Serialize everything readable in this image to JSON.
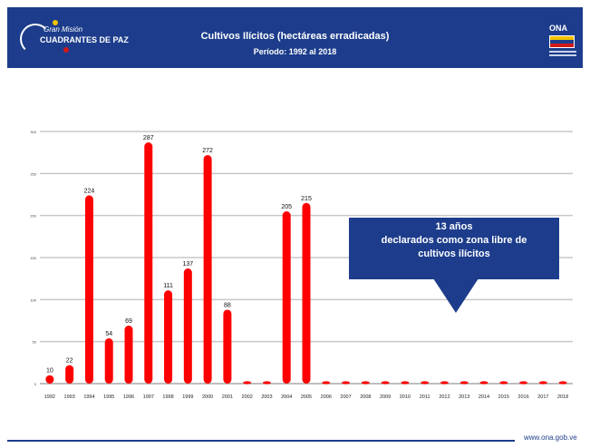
{
  "header": {
    "logo_line1": "Gran Misión",
    "logo_line2": "CUADRANTES DE PAZ",
    "title": "Cultivos Ilícitos (hectáreas erradicadas)",
    "subtitle": "Período: 1992 al 2018",
    "right_logo_text": "ONA"
  },
  "colors": {
    "header_bg": "#1d3d8c",
    "bar": "#ff0000",
    "callout_bg": "#1d3d8c",
    "grid": "#c8c8c8"
  },
  "callout": {
    "line1": "13 años",
    "line2": "declarados como zona libre de",
    "line3": "cultivos ilícitos"
  },
  "footer": {
    "url": "www.ona.gob.ve"
  },
  "chart_data": {
    "type": "bar",
    "title": "Cultivos Ilícitos (hectáreas erradicadas)",
    "subtitle": "Período: 1992 al 2018",
    "categories": [
      "1992",
      "1993",
      "1994",
      "1995",
      "1996",
      "1997",
      "1998",
      "1999",
      "2000",
      "2001",
      "2002",
      "2003",
      "2004",
      "2005",
      "2006",
      "2007",
      "2008",
      "2009",
      "2010",
      "2011",
      "2012",
      "2013",
      "2014",
      "2015",
      "2016",
      "2017",
      "2018"
    ],
    "values": [
      10,
      22,
      224,
      54,
      69,
      287,
      111,
      137,
      272,
      88,
      0,
      0,
      205,
      215,
      0,
      0,
      0,
      0,
      0,
      0,
      0,
      0,
      0,
      0,
      0,
      0,
      0
    ],
    "data_labels": [
      "10",
      "22",
      "224",
      "54",
      "69",
      "287",
      "111",
      "137",
      "272",
      "88",
      "",
      "",
      "205",
      "215",
      "",
      "",
      "",
      "",
      "",
      "",
      "",
      "",
      "",
      "",
      "",
      "",
      ""
    ],
    "ylim": [
      0,
      300
    ],
    "yticks": [
      "0",
      "50",
      "100",
      "150",
      "200",
      "250",
      "300"
    ],
    "xlabel": "",
    "ylabel": "",
    "grid": true,
    "legend": "none"
  }
}
